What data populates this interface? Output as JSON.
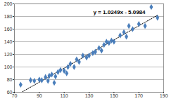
{
  "chart_data": {
    "type": "scatter",
    "annotations": [
      "y = 1.0249x - 5.0984"
    ],
    "x": [
      75,
      83,
      86,
      90,
      92,
      95,
      97,
      98,
      100,
      102,
      103,
      105,
      107,
      110,
      112,
      113,
      115,
      118,
      120,
      122,
      125,
      128,
      130,
      133,
      135,
      138,
      140,
      142,
      144,
      146,
      148,
      150,
      155,
      158,
      160,
      162,
      165,
      170,
      175,
      180,
      185
    ],
    "values": [
      72,
      79,
      78,
      80,
      79,
      84,
      78,
      86,
      88,
      75,
      85,
      92,
      95,
      94,
      90,
      100,
      105,
      100,
      112,
      108,
      118,
      115,
      118,
      122,
      124,
      130,
      126,
      135,
      140,
      138,
      142,
      140,
      150,
      155,
      148,
      165,
      160,
      168,
      165,
      195,
      178
    ],
    "color": "#4a7ebb",
    "marker": "diamond",
    "line_style": "dotted",
    "xlim": [
      70,
      190
    ],
    "xticks": [
      70,
      90,
      110,
      130,
      150,
      170,
      190
    ],
    "ylim": [
      60,
      200
    ],
    "yticks": [
      60,
      80,
      100,
      120,
      140,
      160,
      180,
      200
    ],
    "grid": true
  }
}
